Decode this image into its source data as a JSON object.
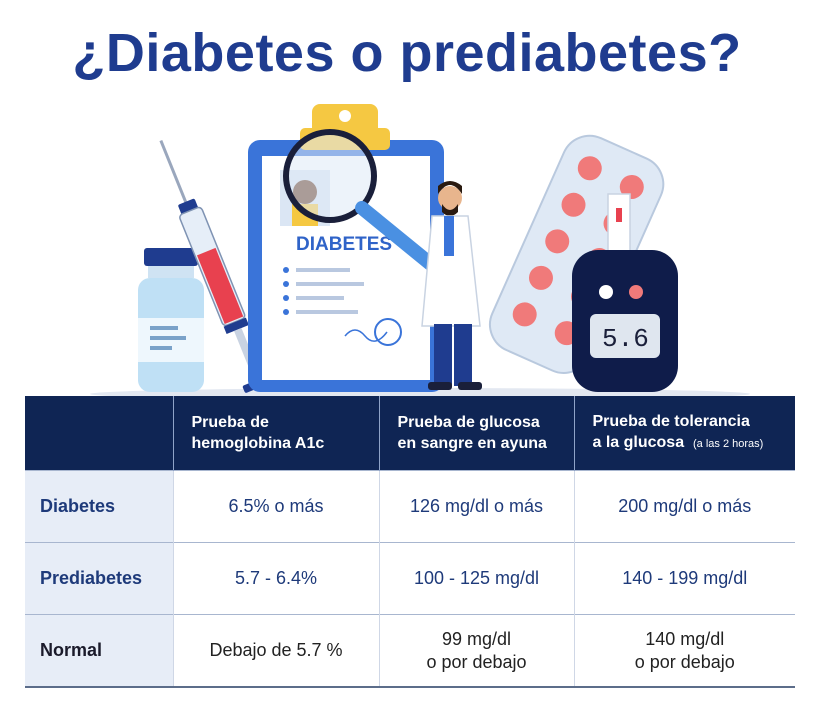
{
  "title": "¿Diabetes o prediabetes?",
  "illustration": {
    "clipboard_heading": "DIABETES",
    "meter_reading": "5.6"
  },
  "table": {
    "headers": [
      "",
      {
        "line1": "Prueba de",
        "line2": "hemoglobina A1c",
        "note": ""
      },
      {
        "line1": "Prueba de glucosa",
        "line2": "en sangre en ayuna",
        "note": ""
      },
      {
        "line1": "Prueba de tolerancia",
        "line2": "a la glucosa",
        "note": "(a las 2 horas)"
      }
    ],
    "rows": [
      {
        "label": "Diabetes",
        "a1c": "6.5% o más",
        "fasting": "126 mg/dl o más",
        "tolerance": "200  mg/dl o más"
      },
      {
        "label": "Prediabetes",
        "a1c": "5.7 - 6.4%",
        "fasting": "100 - 125 mg/dl",
        "tolerance": "140 - 199 mg/dl"
      },
      {
        "label": "Normal",
        "a1c": "Debajo de 5.7 %",
        "fasting_line1": "99 mg/dl",
        "fasting_line2": "o por debajo",
        "tolerance_line1": "140 mg/dl",
        "tolerance_line2": "o por debajo"
      }
    ]
  }
}
